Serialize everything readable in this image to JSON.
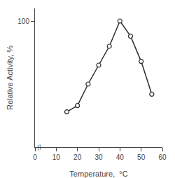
{
  "chart_data": {
    "type": "line",
    "x": [
      15,
      20,
      25,
      30,
      35,
      40,
      45,
      50,
      55
    ],
    "series": [
      {
        "name": "Relative Activity",
        "color": "#2b2b2b",
        "marker": "circle",
        "values": [
          28,
          33,
          50,
          65,
          80,
          100,
          88,
          68,
          42
        ]
      }
    ],
    "xlabel": "Temperature,  °C",
    "ylabel": "Relative Activity, %",
    "xlim": [
      0,
      60
    ],
    "xticks": [
      0,
      10,
      20,
      30,
      40,
      50,
      60
    ],
    "ylim": [
      0,
      110
    ],
    "yticks": [
      100
    ],
    "grid": false,
    "annotations": [
      {
        "text": "//",
        "x": 2
      }
    ]
  }
}
